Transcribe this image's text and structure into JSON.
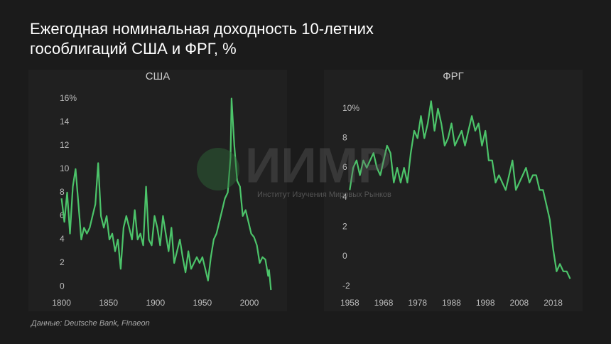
{
  "title": "Ежегодная номинальная доходность 10-летних\nгособлигаций США и ФРГ, %",
  "source": "Данные: Deutsche Bank, Finaeon",
  "watermark": {
    "logo": "ИИМР",
    "name": "Институт Изучения Мировых Рынков"
  },
  "chart_data": [
    {
      "type": "line",
      "title": "США",
      "color": "#4cc46a",
      "xlim": [
        1795,
        2028
      ],
      "ylim": [
        -0.6,
        16.4
      ],
      "xticks": [
        1800,
        1850,
        1900,
        1950,
        2000
      ],
      "yticks": [
        0,
        2,
        4,
        6,
        8,
        10,
        12,
        14,
        {
          "value": 16,
          "label": "16%"
        }
      ],
      "x": [
        1800,
        1803,
        1806,
        1809,
        1812,
        1815,
        1818,
        1821,
        1824,
        1827,
        1830,
        1833,
        1836,
        1839,
        1842,
        1845,
        1848,
        1851,
        1854,
        1857,
        1860,
        1863,
        1866,
        1869,
        1872,
        1875,
        1878,
        1881,
        1884,
        1887,
        1890,
        1893,
        1896,
        1899,
        1902,
        1905,
        1908,
        1911,
        1914,
        1917,
        1920,
        1923,
        1926,
        1929,
        1932,
        1935,
        1938,
        1941,
        1944,
        1947,
        1950,
        1953,
        1956,
        1959,
        1962,
        1965,
        1968,
        1971,
        1974,
        1977,
        1980,
        1981,
        1984,
        1987,
        1990,
        1993,
        1996,
        1999,
        2002,
        2005,
        2008,
        2011,
        2014,
        2017,
        2020,
        2021,
        2023
      ],
      "values": [
        7.5,
        5.5,
        8,
        4.5,
        8.5,
        10,
        7,
        4,
        5,
        4.5,
        5,
        6,
        7,
        10.5,
        6,
        5,
        6,
        4,
        4.5,
        3,
        4,
        1.5,
        5,
        6,
        5,
        4,
        6.5,
        4,
        4.5,
        3.5,
        8.5,
        4,
        3.5,
        6,
        5,
        3.5,
        6,
        4.5,
        3,
        5,
        2,
        3,
        4,
        2.5,
        1.2,
        3,
        1.5,
        2,
        2.5,
        2,
        2.5,
        1.5,
        0.5,
        2.5,
        4,
        4.5,
        5.5,
        6.5,
        7.5,
        8,
        11,
        16,
        12,
        9,
        8.5,
        6,
        6.5,
        5.5,
        4.5,
        4.2,
        3.5,
        2,
        2.5,
        2.3,
        0.9,
        1.4,
        -0.3
      ]
    },
    {
      "type": "line",
      "title": "ФРГ",
      "color": "#4cc46a",
      "xlim": [
        1955,
        2025
      ],
      "ylim": [
        -2.5,
        11
      ],
      "xticks": [
        1958,
        1968,
        1978,
        1988,
        1998,
        2008,
        2018
      ],
      "yticks": [
        -2,
        0,
        2,
        4,
        6,
        8,
        {
          "value": 10,
          "label": "10%"
        }
      ],
      "x": [
        1958,
        1959,
        1960,
        1961,
        1962,
        1963,
        1964,
        1965,
        1966,
        1967,
        1968,
        1969,
        1970,
        1971,
        1972,
        1973,
        1974,
        1975,
        1976,
        1977,
        1978,
        1979,
        1980,
        1981,
        1982,
        1983,
        1984,
        1985,
        1986,
        1987,
        1988,
        1989,
        1990,
        1991,
        1992,
        1993,
        1994,
        1995,
        1996,
        1997,
        1998,
        1999,
        2000,
        2001,
        2002,
        2003,
        2004,
        2005,
        2006,
        2007,
        2008,
        2009,
        2010,
        2011,
        2012,
        2013,
        2014,
        2015,
        2016,
        2017,
        2018,
        2019,
        2020,
        2021,
        2022,
        2023
      ],
      "values": [
        4.5,
        6,
        6.5,
        5.5,
        6.5,
        6,
        6.5,
        7,
        6,
        5.5,
        6.5,
        7.5,
        7,
        5,
        6,
        5,
        6,
        5,
        7,
        8.5,
        8,
        9.5,
        8,
        9,
        10.5,
        8.5,
        10,
        9,
        7.5,
        8,
        9,
        7.5,
        8,
        8.5,
        7.5,
        8.5,
        9.5,
        8.5,
        9,
        7.5,
        8.5,
        6.5,
        6.5,
        5,
        5.5,
        5,
        4.5,
        5.5,
        6.5,
        4.5,
        5,
        5.5,
        6,
        5,
        5.5,
        5.5,
        4.5,
        4.5,
        3.5,
        2.5,
        0.5,
        -1,
        -0.5,
        -1,
        -1,
        -1.5
      ]
    }
  ]
}
